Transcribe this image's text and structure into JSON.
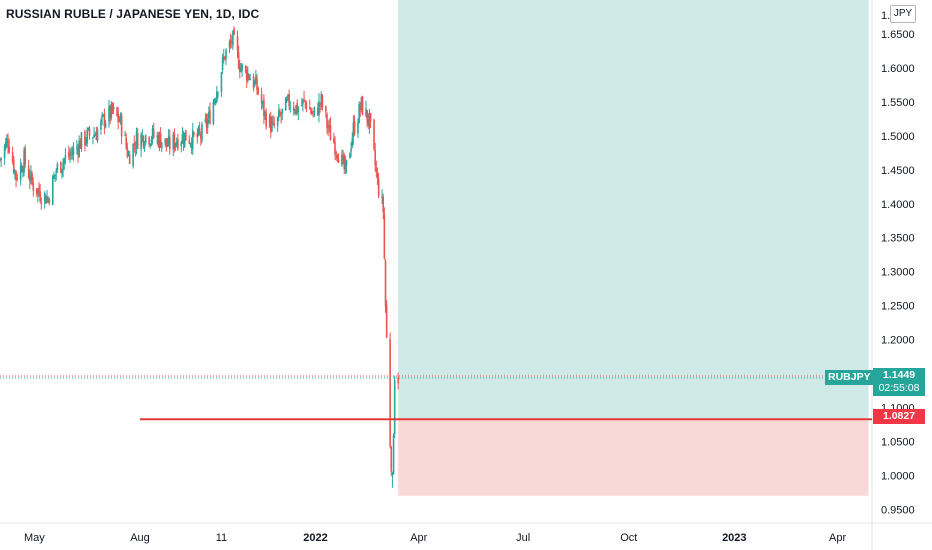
{
  "title": "RUSSIAN RUBLE / JAPANESE YEN, 1D, IDC",
  "currency_badge": "JPY",
  "colors": {
    "up": "#26a69a",
    "down": "#ef5350",
    "profit_zone": "#cfe9e6",
    "loss_zone": "#fbd8d8",
    "stop_line": "#e53935",
    "grid": "#f0f3fa",
    "text": "#131722"
  },
  "chart_data": {
    "type": "candlestick",
    "title": "RUSSIAN RUBLE / JAPANESE YEN, 1D, IDC",
    "symbol": "RUBJPY",
    "currency": "JPY",
    "ylim": [
      0.93,
      1.7
    ],
    "y_ticks": [
      "1.6500",
      "1.6000",
      "1.5500",
      "1.5000",
      "1.4500",
      "1.4000",
      "1.3500",
      "1.3000",
      "1.2500",
      "1.2000",
      "1.1000",
      "1.0500",
      "1.0000",
      "0.9500"
    ],
    "top_tick_partial": "1.",
    "x_ticks": [
      "May",
      "Aug",
      "11",
      "2022",
      "Apr",
      "Jul",
      "Oct",
      "2023",
      "Apr"
    ],
    "x_range": [
      "2021-04-01",
      "2023-05-01"
    ],
    "x_tick_dates": [
      "2021-05-01",
      "2021-08-01",
      "2021-10-11",
      "2022-01-01",
      "2022-04-01",
      "2022-07-01",
      "2022-10-01",
      "2023-01-01",
      "2023-04-01"
    ],
    "close_path": [
      [
        "2021-04-01",
        1.465
      ],
      [
        "2021-04-08",
        1.495
      ],
      [
        "2021-04-15",
        1.44
      ],
      [
        "2021-04-22",
        1.465
      ],
      [
        "2021-04-29",
        1.43
      ],
      [
        "2021-05-06",
        1.415
      ],
      [
        "2021-05-13",
        1.408
      ],
      [
        "2021-05-20",
        1.45
      ],
      [
        "2021-05-27",
        1.465
      ],
      [
        "2021-06-03",
        1.475
      ],
      [
        "2021-06-10",
        1.49
      ],
      [
        "2021-06-17",
        1.5
      ],
      [
        "2021-06-24",
        1.505
      ],
      [
        "2021-07-01",
        1.525
      ],
      [
        "2021-07-08",
        1.535
      ],
      [
        "2021-07-15",
        1.52
      ],
      [
        "2021-07-22",
        1.47
      ],
      [
        "2021-07-29",
        1.495
      ],
      [
        "2021-08-05",
        1.5
      ],
      [
        "2021-08-12",
        1.5
      ],
      [
        "2021-08-19",
        1.495
      ],
      [
        "2021-08-26",
        1.485
      ],
      [
        "2021-09-02",
        1.495
      ],
      [
        "2021-09-09",
        1.5
      ],
      [
        "2021-09-16",
        1.495
      ],
      [
        "2021-09-23",
        1.5
      ],
      [
        "2021-09-30",
        1.525
      ],
      [
        "2021-10-07",
        1.57
      ],
      [
        "2021-10-14",
        1.62
      ],
      [
        "2021-10-21",
        1.64
      ],
      [
        "2021-10-28",
        1.6
      ],
      [
        "2021-11-04",
        1.59
      ],
      [
        "2021-11-11",
        1.57
      ],
      [
        "2021-11-18",
        1.53
      ],
      [
        "2021-11-25",
        1.51
      ],
      [
        "2021-12-02",
        1.53
      ],
      [
        "2021-12-09",
        1.55
      ],
      [
        "2021-12-16",
        1.54
      ],
      [
        "2021-12-23",
        1.55
      ],
      [
        "2021-12-30",
        1.53
      ],
      [
        "2022-01-06",
        1.55
      ],
      [
        "2022-01-13",
        1.505
      ],
      [
        "2022-01-20",
        1.48
      ],
      [
        "2022-01-27",
        1.445
      ],
      [
        "2022-02-03",
        1.51
      ],
      [
        "2022-02-10",
        1.545
      ],
      [
        "2022-02-17",
        1.52
      ],
      [
        "2022-02-24",
        1.43
      ],
      [
        "2022-03-01",
        1.39
      ],
      [
        "2022-03-03",
        1.25
      ],
      [
        "2022-03-07",
        1.05
      ],
      [
        "2022-03-09",
        0.99
      ],
      [
        "2022-03-11",
        1.15
      ],
      [
        "2022-03-14",
        1.1449
      ]
    ],
    "extremes": {
      "high": 1.648,
      "high_date": "2021-10-20",
      "low": 0.982,
      "low_date": "2022-03-09"
    },
    "last_price": {
      "label": "RUBJPY",
      "value": "1.1449",
      "countdown": "02:55:08"
    },
    "position": {
      "type": "long",
      "entry": 1.1449,
      "stop": 1.0827,
      "stop_label": "1.0827",
      "target_above_top": true,
      "stop_zone_low": 0.97,
      "start_date": "2022-03-14",
      "end_date": "2023-04-28"
    },
    "stop_line": {
      "value": 1.0827,
      "from": "2021-08-01",
      "to": "2023-05-01"
    },
    "grid": false
  }
}
